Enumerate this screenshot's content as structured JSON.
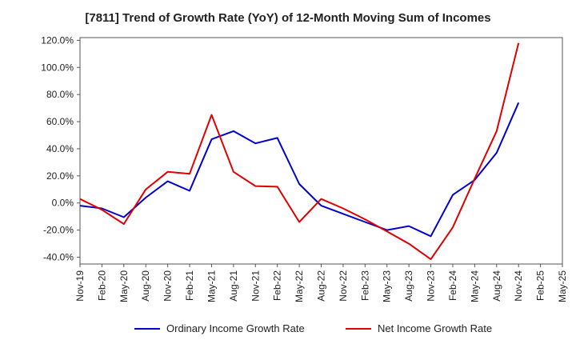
{
  "chart_data": {
    "type": "line",
    "title": "[7811]  Trend of Growth Rate (YoY) of 12-Month Moving Sum of Incomes",
    "xlabel": "",
    "ylabel": "",
    "x": [
      "Nov-19",
      "Feb-20",
      "May-20",
      "Aug-20",
      "Nov-20",
      "Feb-21",
      "May-21",
      "Aug-21",
      "Nov-21",
      "Feb-22",
      "May-22",
      "Aug-22",
      "Nov-22",
      "Feb-23",
      "May-23",
      "Aug-23",
      "Nov-23",
      "Feb-24",
      "May-24",
      "Aug-24",
      "Nov-24",
      "Feb-25",
      "May-25"
    ],
    "y_ticks": [
      "120.0%",
      "100.0%",
      "80.0%",
      "60.0%",
      "40.0%",
      "20.0%",
      "0.0%",
      "-20.0%",
      "-40.0%"
    ],
    "ylim": [
      -45,
      122
    ],
    "grid": true,
    "legend_position": "bottom",
    "series": [
      {
        "name": "Ordinary Income Growth Rate",
        "color": "#0000cc",
        "values": [
          -2,
          -4,
          -10.5,
          4,
          16,
          9,
          47,
          53,
          44,
          48,
          14,
          -2,
          -8,
          -14,
          -20,
          -17,
          -24.5,
          6,
          17,
          37,
          74,
          null,
          null
        ]
      },
      {
        "name": "Net Income Growth Rate",
        "color": "#e00000",
        "values": [
          3,
          -5,
          -15.5,
          10,
          23,
          21.5,
          65,
          23,
          12.5,
          12,
          -14,
          3,
          -4,
          -12,
          -21,
          -30,
          -41.5,
          -18,
          18,
          53,
          118,
          null,
          null
        ]
      }
    ]
  }
}
